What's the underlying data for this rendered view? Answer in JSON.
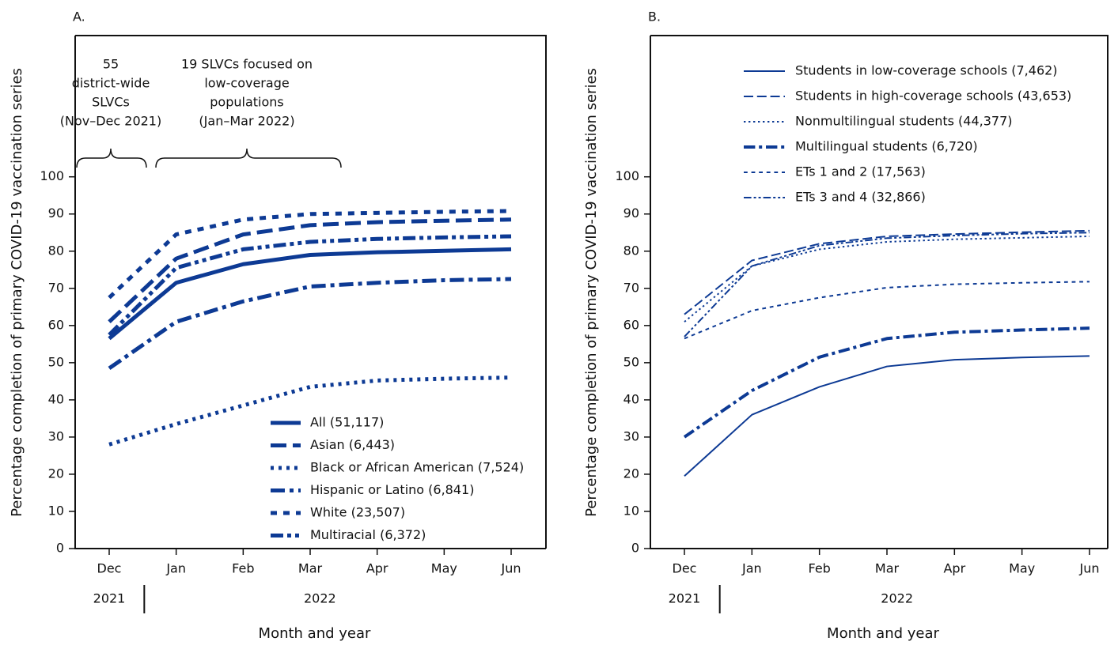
{
  "chart_data": [
    {
      "type": "line",
      "title": "A.",
      "y_label": "Percentage completion of primary COVID-19 vaccination series",
      "x_label": "Month and year",
      "categories": [
        "Dec",
        "Jan",
        "Feb",
        "Mar",
        "Apr",
        "May",
        "Jun"
      ],
      "year_labels": [
        "2021",
        "2022"
      ],
      "ylim": [
        0,
        138
      ],
      "yticks": [
        0,
        10,
        20,
        30,
        40,
        50,
        60,
        70,
        80,
        90,
        100
      ],
      "legend": "lower right",
      "annotations": [
        {
          "lines": [
            "55",
            "district-wide",
            "SLVCs",
            "(Nov–Dec 2021)"
          ]
        },
        {
          "lines": [
            "19 SLVCs focused on",
            "low-coverage",
            "populations",
            "(Jan–Mar 2022)"
          ]
        }
      ],
      "series": [
        {
          "name": "All (51,117)",
          "color": "#0d3a94",
          "dash": "solid",
          "width": 5,
          "values": [
            56.5,
            71.5,
            76.5,
            79,
            79.7,
            80.1,
            80.5
          ]
        },
        {
          "name": "Asian (6,443)",
          "color": "#0d3a94",
          "dash": "long",
          "width": 5,
          "values": [
            61,
            78,
            84.5,
            87,
            87.8,
            88.2,
            88.5
          ]
        },
        {
          "name": "Black or African American (7,524)",
          "color": "#0d3a94",
          "dash": "dotted",
          "width": 5,
          "values": [
            28,
            33.5,
            38.5,
            43.5,
            45.2,
            45.7,
            46
          ]
        },
        {
          "name": "Hispanic or Latino (6,841)",
          "color": "#0d3a94",
          "dash": "dashdot",
          "width": 5,
          "values": [
            48.5,
            61,
            66.5,
            70.5,
            71.5,
            72.2,
            72.5
          ]
        },
        {
          "name": "White (23,507)",
          "color": "#0d3a94",
          "dash": "short",
          "width": 5,
          "values": [
            67.5,
            84.5,
            88.5,
            90,
            90.3,
            90.6,
            90.8
          ]
        },
        {
          "name": "Multiracial (6,372)",
          "color": "#0d3a94",
          "dash": "dashdotdot",
          "width": 5,
          "values": [
            57.5,
            75.5,
            80.5,
            82.5,
            83.3,
            83.7,
            84
          ]
        }
      ]
    },
    {
      "type": "line",
      "title": "B.",
      "y_label": "Percentage completion of primary COVID-19 vaccination series",
      "x_label": "Month and year",
      "categories": [
        "Dec",
        "Jan",
        "Feb",
        "Mar",
        "Apr",
        "May",
        "Jun"
      ],
      "year_labels": [
        "2021",
        "2022"
      ],
      "ylim": [
        0,
        138
      ],
      "yticks": [
        0,
        10,
        20,
        30,
        40,
        50,
        60,
        70,
        80,
        90,
        100
      ],
      "legend": "upper right",
      "series": [
        {
          "name": "Students in low-coverage schools (7,462)",
          "color": "#0d3a94",
          "dash": "solid",
          "width": 2,
          "values": [
            19.5,
            36,
            43.5,
            49,
            50.8,
            51.4,
            51.8
          ]
        },
        {
          "name": "Students in high-coverage schools (43,653)",
          "color": "#0d3a94",
          "dash": "long",
          "width": 2,
          "values": [
            63,
            77.5,
            82,
            84,
            84.6,
            85.1,
            85.5
          ]
        },
        {
          "name": "Nonmultilingual students (44,377)",
          "color": "#0d3a94",
          "dash": "dotted",
          "width": 2,
          "values": [
            61,
            76,
            80.5,
            82.5,
            83.2,
            83.6,
            84
          ]
        },
        {
          "name": "Multilingual students (6,720)",
          "color": "#0d3a94",
          "dash": "dashdot",
          "width": 4,
          "values": [
            30,
            42.5,
            51.5,
            56.5,
            58.2,
            58.8,
            59.3
          ]
        },
        {
          "name": "ETs 1 and 2 (17,563)",
          "color": "#0d3a94",
          "dash": "short",
          "width": 2,
          "values": [
            56.5,
            64,
            67.5,
            70.2,
            71.1,
            71.5,
            71.8
          ]
        },
        {
          "name": "ETs 3 and 4 (32,866)",
          "color": "#0d3a94",
          "dash": "dashdotdot",
          "width": 2,
          "values": [
            57,
            76,
            81.5,
            83.5,
            84.2,
            84.7,
            85
          ]
        }
      ]
    }
  ]
}
